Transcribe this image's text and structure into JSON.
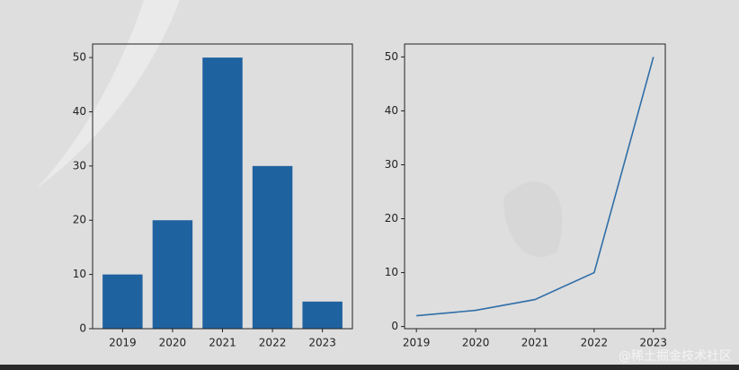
{
  "chart_data": [
    {
      "type": "bar",
      "categories": [
        "2019",
        "2020",
        "2021",
        "2022",
        "2023"
      ],
      "values": [
        10,
        20,
        50,
        30,
        5
      ],
      "color": "#1f62a0",
      "ylim": [
        0,
        52.5
      ],
      "yticks": [
        0,
        10,
        20,
        30,
        40,
        50
      ]
    },
    {
      "type": "line",
      "categories": [
        "2019",
        "2020",
        "2021",
        "2022",
        "2023"
      ],
      "values": [
        2,
        3,
        5,
        10,
        50
      ],
      "color": "#2f6ea8",
      "ylim": [
        -0.4,
        52.4
      ],
      "yticks": [
        0,
        10,
        20,
        30,
        40,
        50
      ]
    }
  ],
  "watermark": "@稀土掘金技术社区"
}
